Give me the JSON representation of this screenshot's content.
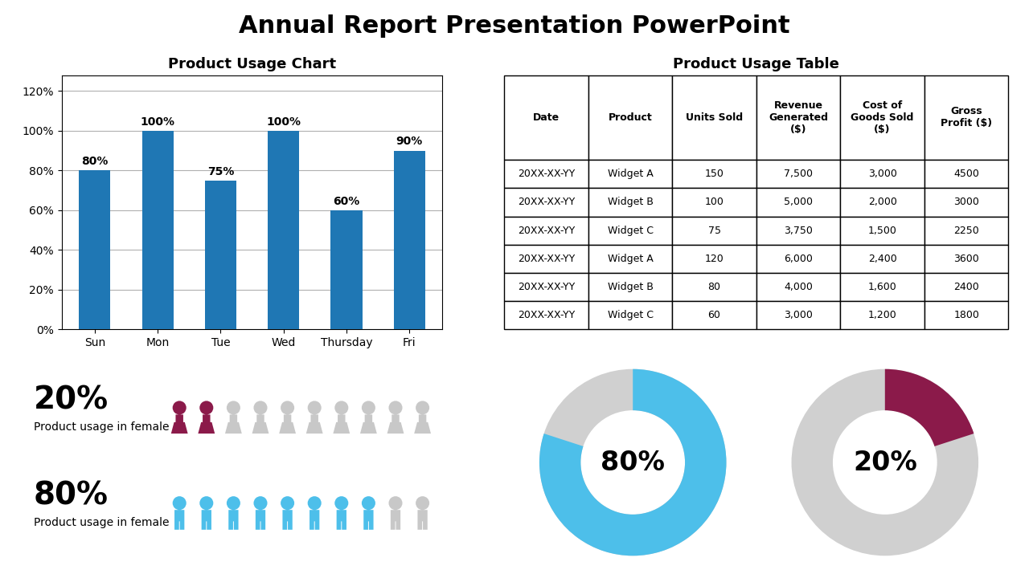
{
  "title": "Annual Report Presentation PowerPoint",
  "chart_data": [
    {
      "type": "bar",
      "title": "Product Usage Chart",
      "categories": [
        "Sun",
        "Mon",
        "Tue",
        "Wed",
        "Thursday",
        "Fri"
      ],
      "values": [
        80,
        100,
        75,
        100,
        60,
        90
      ],
      "value_labels": [
        "80%",
        "100%",
        "75%",
        "100%",
        "60%",
        "90%"
      ],
      "data_labels": true,
      "ylim": [
        0,
        128
      ],
      "yticks": [
        {
          "value": 0,
          "label": "0%"
        },
        {
          "value": 20,
          "label": "20%"
        },
        {
          "value": 40,
          "label": "40%"
        },
        {
          "value": 60,
          "label": "60%"
        },
        {
          "value": 80,
          "label": "80%"
        },
        {
          "value": 100,
          "label": "100%"
        },
        {
          "value": 120,
          "label": "120%"
        }
      ],
      "grid": true
    },
    {
      "type": "table",
      "title": "Product Usage Table",
      "columns": [
        "Date",
        "Product",
        "Units Sold",
        "Revenue\nGenerated\n($)",
        "Cost of\nGoods Sold\n($)",
        "Gross\nProfit ($)"
      ],
      "rows": [
        [
          "20XX-XX-YY",
          "Widget A",
          "150",
          "7,500",
          "3,000",
          "4500"
        ],
        [
          "20XX-XX-YY",
          "Widget B",
          "100",
          "5,000",
          "2,000",
          "3000"
        ],
        [
          "20XX-XX-YY",
          "Widget C",
          "75",
          "3,750",
          "1,500",
          "2250"
        ],
        [
          "20XX-XX-YY",
          "Widget A",
          "120",
          "6,000",
          "2,400",
          "3600"
        ],
        [
          "20XX-XX-YY",
          "Widget B",
          "80",
          "4,000",
          "1,600",
          "2400"
        ],
        [
          "20XX-XX-YY",
          "Widget C",
          "60",
          "3,000",
          "1,200",
          "1800"
        ]
      ]
    },
    {
      "type": "pictograph",
      "total": 10,
      "series": [
        {
          "name": "Product usage in female",
          "label": "20%",
          "values": [
            2
          ],
          "color": "#8b1a4a",
          "marker": "female"
        },
        {
          "name": "Product usage in female",
          "label": "80%",
          "values": [
            8
          ],
          "color": "#4dbfea",
          "marker": "male"
        }
      ]
    },
    {
      "type": "donut",
      "total": 100,
      "series": [
        {
          "values": [
            80
          ],
          "value_labels": [
            "80%"
          ],
          "color": "#4dbfea"
        },
        {
          "values": [
            20
          ],
          "value_labels": [
            "20%"
          ],
          "color": "#8b1a4a"
        }
      ]
    }
  ]
}
